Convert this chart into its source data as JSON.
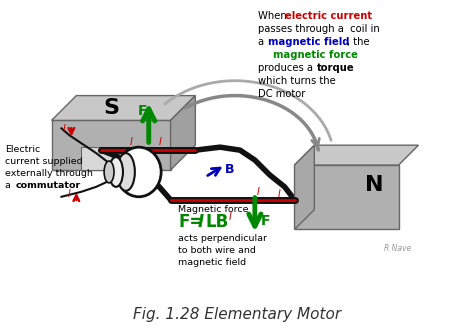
{
  "fig_caption": "Fig. 1.28 Elementary Motor",
  "caption_fontsize": 11,
  "bg_color": "#ffffff",
  "fig_width": 4.74,
  "fig_height": 3.35,
  "dpi": 100,
  "watermark": "R Nave",
  "S_label": "S",
  "N_label": "N",
  "B_label": "B",
  "F_label": "F",
  "I_label": "I",
  "green": "#008800",
  "red": "#cc0000",
  "blue": "#0000bb",
  "gray_magnet": "#b0b0b0",
  "gray_dark": "#666666",
  "gray_mid": "#999999",
  "coil_color": "#111111"
}
